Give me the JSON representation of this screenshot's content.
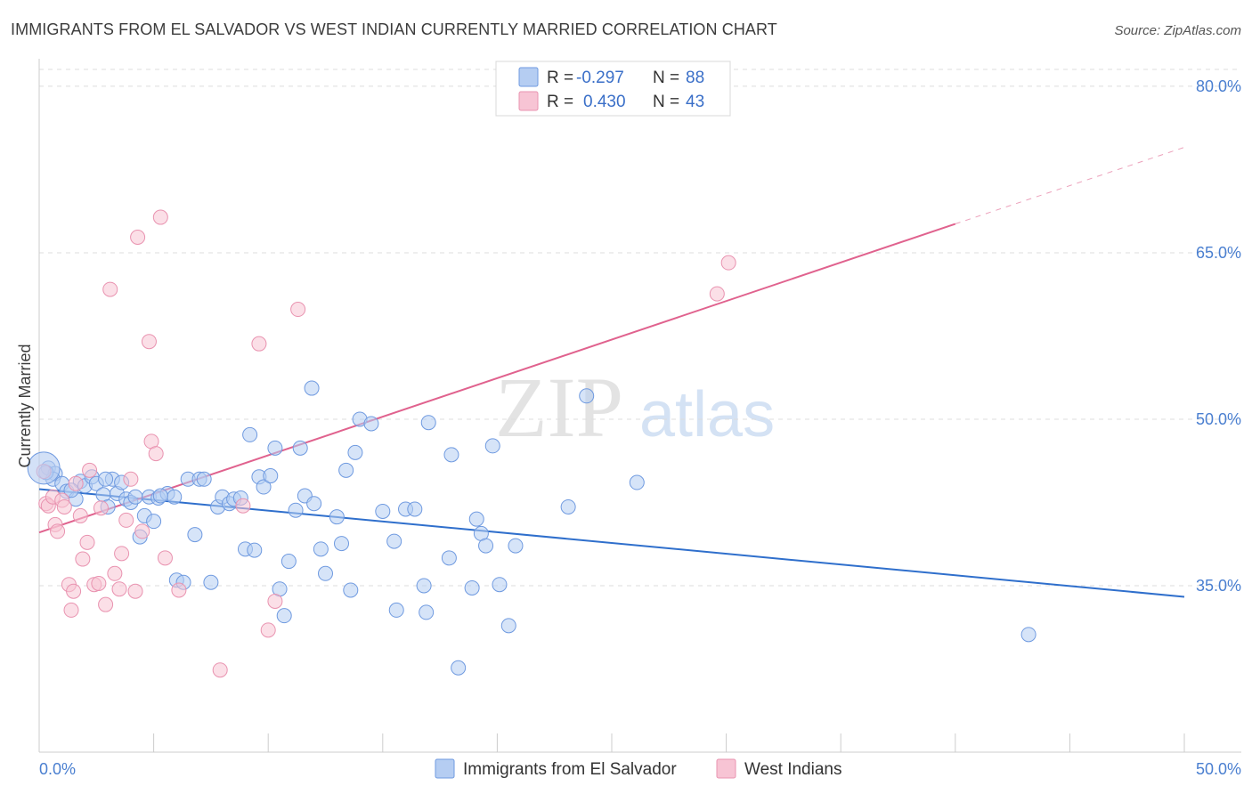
{
  "title": "IMMIGRANTS FROM EL SALVADOR VS WEST INDIAN CURRENTLY MARRIED CORRELATION CHART",
  "source": "Source: ZipAtlas.com",
  "watermark": {
    "zip": "ZIP",
    "atlas": "atlas"
  },
  "legend": {
    "r_label": "R =",
    "n_label": "N =",
    "series1": {
      "r": "-0.297",
      "n": "88"
    },
    "series2": {
      "r": "0.430",
      "n": "43"
    }
  },
  "colors": {
    "blue_fill": "#b5cdf2",
    "blue_stroke": "#6f9ae0",
    "blue_line": "#2f6fcc",
    "pink_fill": "#f7c4d4",
    "pink_stroke": "#e993b0",
    "pink_line": "#e0628e",
    "grid": "#dcdcdc",
    "tick_text": "#4a7fd0"
  },
  "chart_data": {
    "type": "scatter",
    "title": "IMMIGRANTS FROM EL SALVADOR VS WEST INDIAN CURRENTLY MARRIED CORRELATION CHART",
    "xlabel": "",
    "ylabel": "Currently Married",
    "xlim": [
      0,
      50
    ],
    "ylim": [
      20,
      82
    ],
    "x_tick_labels": [
      "0.0%",
      "50.0%"
    ],
    "y_ticks": [
      35,
      50,
      65,
      80
    ],
    "y_tick_labels": [
      "35.0%",
      "50.0%",
      "65.0%",
      "80.0%"
    ],
    "grid": true,
    "legend_position": "top-center",
    "series": [
      {
        "name": "Immigrants from El Salvador",
        "color": "#b5cdf2",
        "r": -0.297,
        "n": 88,
        "trend": {
          "x": [
            0,
            50
          ],
          "y": [
            43.7,
            34.0
          ]
        },
        "points": [
          [
            0.4,
            45.6
          ],
          [
            0.7,
            45.1
          ],
          [
            0.6,
            44.6
          ],
          [
            1.0,
            44.2
          ],
          [
            1.2,
            43.5
          ],
          [
            1.6,
            42.8
          ],
          [
            1.8,
            44.4
          ],
          [
            2.0,
            44.0
          ],
          [
            2.3,
            44.8
          ],
          [
            2.5,
            44.2
          ],
          [
            2.8,
            43.2
          ],
          [
            3.0,
            42.1
          ],
          [
            3.2,
            44.6
          ],
          [
            3.4,
            43.3
          ],
          [
            3.6,
            44.3
          ],
          [
            3.8,
            42.8
          ],
          [
            4.0,
            42.5
          ],
          [
            4.2,
            43.0
          ],
          [
            4.4,
            39.4
          ],
          [
            4.6,
            41.3
          ],
          [
            4.8,
            43.0
          ],
          [
            5.0,
            40.8
          ],
          [
            5.2,
            42.9
          ],
          [
            5.6,
            43.3
          ],
          [
            5.9,
            43.0
          ],
          [
            6.0,
            35.5
          ],
          [
            6.3,
            35.3
          ],
          [
            6.5,
            44.6
          ],
          [
            6.8,
            39.6
          ],
          [
            7.0,
            44.6
          ],
          [
            7.2,
            44.6
          ],
          [
            7.5,
            35.3
          ],
          [
            7.8,
            42.1
          ],
          [
            8.0,
            43.0
          ],
          [
            8.3,
            42.4
          ],
          [
            8.5,
            42.8
          ],
          [
            8.8,
            42.9
          ],
          [
            9.0,
            38.3
          ],
          [
            9.2,
            48.6
          ],
          [
            9.4,
            38.2
          ],
          [
            9.6,
            44.8
          ],
          [
            9.8,
            43.9
          ],
          [
            10.1,
            44.9
          ],
          [
            10.3,
            47.4
          ],
          [
            10.5,
            34.7
          ],
          [
            10.7,
            32.3
          ],
          [
            10.9,
            37.2
          ],
          [
            11.2,
            41.8
          ],
          [
            11.4,
            47.4
          ],
          [
            11.6,
            43.1
          ],
          [
            11.9,
            52.8
          ],
          [
            12.0,
            42.4
          ],
          [
            12.3,
            38.3
          ],
          [
            12.5,
            36.1
          ],
          [
            13.0,
            41.2
          ],
          [
            13.2,
            38.8
          ],
          [
            13.4,
            45.4
          ],
          [
            13.6,
            34.6
          ],
          [
            13.8,
            47.0
          ],
          [
            14.0,
            50.0
          ],
          [
            14.5,
            49.6
          ],
          [
            15.0,
            41.7
          ],
          [
            15.5,
            39.0
          ],
          [
            15.6,
            32.8
          ],
          [
            16.0,
            41.9
          ],
          [
            16.4,
            41.9
          ],
          [
            16.8,
            35.0
          ],
          [
            16.9,
            32.6
          ],
          [
            17.0,
            49.7
          ],
          [
            17.9,
            37.5
          ],
          [
            18.0,
            46.8
          ],
          [
            18.3,
            27.6
          ],
          [
            18.9,
            34.8
          ],
          [
            19.1,
            41.0
          ],
          [
            19.3,
            39.7
          ],
          [
            19.5,
            38.6
          ],
          [
            19.8,
            47.6
          ],
          [
            20.1,
            35.1
          ],
          [
            20.5,
            31.4
          ],
          [
            20.8,
            38.6
          ],
          [
            23.1,
            42.1
          ],
          [
            23.9,
            52.1
          ],
          [
            26.1,
            44.3
          ],
          [
            43.2,
            30.6
          ],
          [
            0.3,
            45.2
          ],
          [
            1.4,
            43.6
          ],
          [
            2.9,
            44.6
          ],
          [
            5.3,
            43.1
          ]
        ]
      },
      {
        "name": "West Indians",
        "color": "#f7c4d4",
        "r": 0.43,
        "n": 43,
        "trend": {
          "x": [
            0,
            40
          ],
          "y": [
            39.8,
            67.6
          ]
        },
        "trend_dashed": {
          "x": [
            40,
            50
          ],
          "y": [
            67.6,
            74.5
          ]
        },
        "points": [
          [
            0.2,
            45.3
          ],
          [
            0.3,
            42.4
          ],
          [
            0.4,
            42.2
          ],
          [
            0.6,
            43.0
          ],
          [
            0.7,
            40.5
          ],
          [
            0.8,
            39.9
          ],
          [
            1.0,
            42.7
          ],
          [
            1.1,
            42.1
          ],
          [
            1.3,
            35.1
          ],
          [
            1.4,
            32.8
          ],
          [
            1.5,
            34.5
          ],
          [
            1.6,
            44.2
          ],
          [
            1.8,
            41.3
          ],
          [
            1.9,
            37.4
          ],
          [
            2.1,
            38.9
          ],
          [
            2.2,
            45.4
          ],
          [
            2.4,
            35.1
          ],
          [
            2.6,
            35.2
          ],
          [
            2.7,
            42.0
          ],
          [
            2.9,
            33.3
          ],
          [
            3.1,
            61.7
          ],
          [
            3.3,
            36.1
          ],
          [
            3.5,
            34.7
          ],
          [
            3.6,
            37.9
          ],
          [
            3.8,
            40.9
          ],
          [
            4.0,
            44.6
          ],
          [
            4.2,
            34.5
          ],
          [
            4.3,
            66.4
          ],
          [
            4.5,
            39.9
          ],
          [
            4.8,
            57.0
          ],
          [
            4.9,
            48.0
          ],
          [
            5.1,
            46.9
          ],
          [
            5.3,
            68.2
          ],
          [
            5.5,
            37.5
          ],
          [
            6.1,
            34.6
          ],
          [
            7.9,
            27.4
          ],
          [
            8.9,
            42.2
          ],
          [
            9.6,
            56.8
          ],
          [
            10.0,
            31.0
          ],
          [
            10.3,
            33.6
          ],
          [
            11.3,
            59.9
          ],
          [
            29.6,
            61.3
          ],
          [
            30.1,
            64.1
          ]
        ]
      }
    ]
  },
  "bottom_legend": {
    "item1": "Immigrants from El Salvador",
    "item2": "West Indians"
  }
}
